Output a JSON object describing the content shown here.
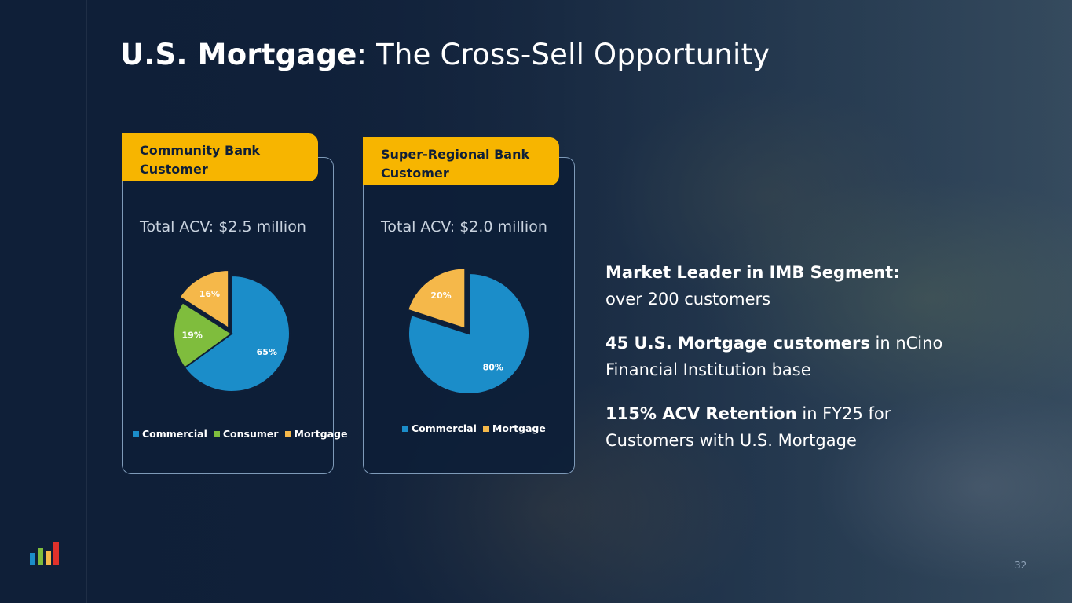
{
  "title": {
    "bold": "U.S. Mortgage",
    "rest": ": The Cross-Sell Opportunity"
  },
  "chart_data": [
    {
      "type": "pie",
      "header": "Community Bank Customer",
      "title": "Total ACV: $2.5 million",
      "categories": [
        "Commercial",
        "Consumer",
        "Mortgage"
      ],
      "values": [
        65,
        19,
        16
      ],
      "labels": [
        "65%",
        "19%",
        "16%"
      ],
      "colors": [
        "#1b8dc9",
        "#7fbd3d",
        "#f5b84a"
      ],
      "exploded": "Mortgage",
      "legend": "bottom"
    },
    {
      "type": "pie",
      "header": "Super-Regional Bank Customer",
      "title": "Total ACV: $2.0 million",
      "categories": [
        "Commercial",
        "Mortgage"
      ],
      "values": [
        80,
        20
      ],
      "labels": [
        "80%",
        "20%"
      ],
      "colors": [
        "#1b8dc9",
        "#f5b84a"
      ],
      "exploded": "Mortgage",
      "legend": "bottom"
    }
  ],
  "bullets": [
    {
      "strong": "Market Leader in IMB Segment:",
      "rest": "over 200 customers"
    },
    {
      "strong": "45 U.S. Mortgage customers",
      "rest": " in nCino Financial Institution base"
    },
    {
      "strong": "115% ACV Retention",
      "rest": " in FY25 for Customers with U.S. Mortgage"
    }
  ],
  "logo_colors": [
    "#1b8dc9",
    "#7fbd3d",
    "#f5b84a",
    "#e0312b"
  ],
  "page_number": "32"
}
